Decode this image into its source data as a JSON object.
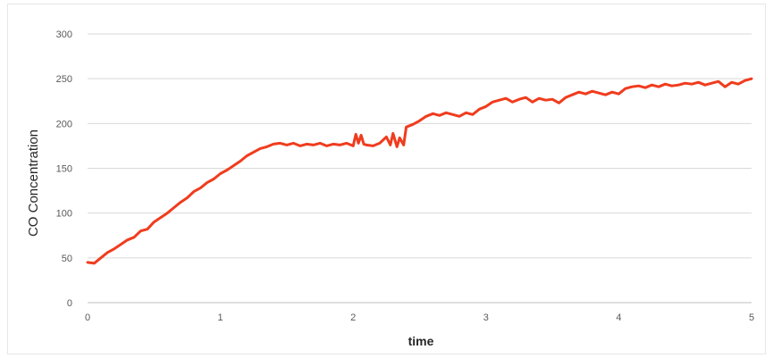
{
  "chart_data": {
    "type": "line",
    "xlabel": "time",
    "ylabel": "CO Concentration",
    "xlim": [
      0,
      5
    ],
    "ylim": [
      0,
      300
    ],
    "xticks": [
      0,
      1,
      2,
      3,
      4,
      5
    ],
    "yticks": [
      0,
      50,
      100,
      150,
      200,
      250,
      300
    ],
    "grid": "horizontal",
    "legend": "none",
    "colors": {
      "series": "#f03c1e",
      "grid": "#d9d9d9",
      "axis": "#bfbfbf"
    },
    "series": [
      {
        "x": [
          0.0,
          0.05,
          0.1,
          0.15,
          0.2,
          0.25,
          0.3,
          0.35,
          0.4,
          0.45,
          0.5,
          0.55,
          0.6,
          0.65,
          0.7,
          0.75,
          0.8,
          0.85,
          0.9,
          0.95,
          1.0,
          1.05,
          1.1,
          1.15,
          1.2,
          1.25,
          1.3,
          1.35,
          1.4,
          1.45,
          1.5,
          1.55,
          1.6,
          1.65,
          1.7,
          1.75,
          1.8,
          1.85,
          1.9,
          1.95,
          2.0,
          2.02,
          2.04,
          2.06,
          2.08,
          2.1,
          2.15,
          2.2,
          2.25,
          2.28,
          2.3,
          2.33,
          2.35,
          2.38,
          2.4,
          2.45,
          2.5,
          2.55,
          2.6,
          2.65,
          2.7,
          2.75,
          2.8,
          2.85,
          2.9,
          2.95,
          3.0,
          3.05,
          3.1,
          3.15,
          3.2,
          3.25,
          3.3,
          3.35,
          3.4,
          3.45,
          3.5,
          3.55,
          3.6,
          3.65,
          3.7,
          3.75,
          3.8,
          3.85,
          3.9,
          3.95,
          4.0,
          4.05,
          4.1,
          4.15,
          4.2,
          4.25,
          4.3,
          4.35,
          4.4,
          4.45,
          4.5,
          4.55,
          4.6,
          4.65,
          4.7,
          4.75,
          4.8,
          4.85,
          4.9,
          4.95,
          5.0
        ],
        "y": [
          45,
          44,
          50,
          56,
          60,
          65,
          70,
          73,
          80,
          82,
          90,
          95,
          100,
          106,
          112,
          117,
          124,
          128,
          134,
          138,
          144,
          148,
          153,
          158,
          164,
          168,
          172,
          174,
          177,
          178,
          176,
          178,
          175,
          177,
          176,
          178,
          175,
          177,
          176,
          178,
          175,
          188,
          178,
          187,
          177,
          176,
          175,
          178,
          185,
          176,
          189,
          174,
          184,
          176,
          196,
          199,
          203,
          208,
          211,
          209,
          212,
          210,
          208,
          212,
          210,
          216,
          219,
          224,
          226,
          228,
          224,
          227,
          229,
          224,
          228,
          226,
          227,
          223,
          229,
          232,
          235,
          233,
          236,
          234,
          232,
          235,
          233,
          239,
          241,
          242,
          240,
          243,
          241,
          244,
          242,
          243,
          245,
          244,
          246,
          243,
          245,
          247,
          241,
          246,
          244,
          248,
          250
        ]
      }
    ]
  }
}
